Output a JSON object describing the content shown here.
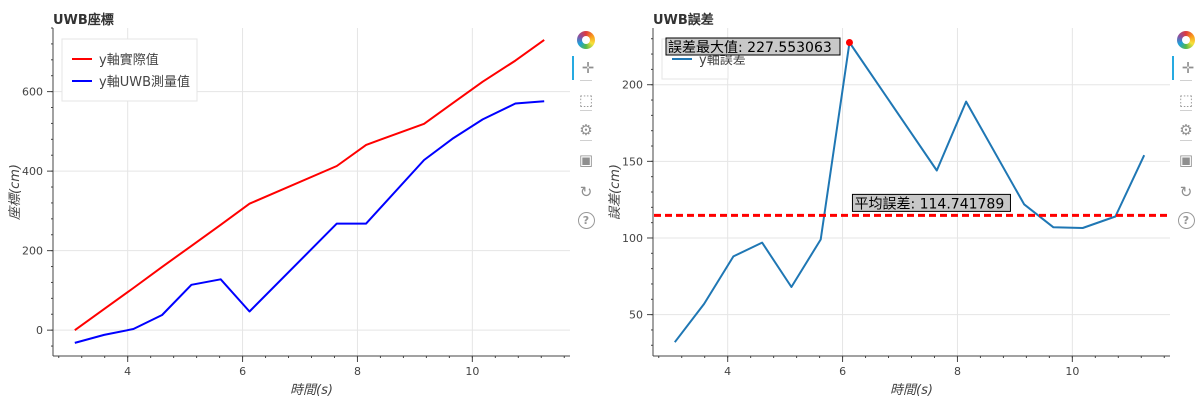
{
  "charts": [
    {
      "title": "UWB座標",
      "toolbar": [
        "bokeh-logo-icon",
        "pan-icon",
        "box-zoom-icon",
        "wheel-zoom-icon",
        "save-icon",
        "reset-icon",
        "help-icon"
      ],
      "chart_data": {
        "type": "line",
        "x": [
          3.08,
          3.59,
          4.1,
          4.6,
          5.11,
          5.62,
          6.12,
          7.64,
          8.15,
          9.16,
          9.67,
          10.18,
          10.75,
          11.25
        ],
        "series": [
          {
            "name": "y軸實際值",
            "color": "#ff0000",
            "values": [
              0,
              53,
              106,
              159,
              212,
              265,
              318,
              413,
              466,
              519,
              572,
              625,
              678,
              730
            ]
          },
          {
            "name": "y軸UWB測量值",
            "color": "#0000ff",
            "values": [
              -32,
              -12,
              3,
              38,
              114,
              128,
              47,
              268,
              268,
              428,
              483,
              530,
              570,
              576
            ]
          }
        ],
        "xlabel": "時間(s)",
        "ylabel": "座標(cm)",
        "xlim": [
          2.7,
          11.7
        ],
        "ylim": [
          -65,
          760
        ],
        "xticks": [
          4,
          6,
          8,
          10
        ],
        "yticks": [
          0,
          200,
          400,
          600
        ],
        "grid": true,
        "legend_position": "top-left"
      }
    },
    {
      "title": "UWB誤差",
      "toolbar": [
        "bokeh-logo-icon",
        "pan-icon",
        "box-zoom-icon",
        "wheel-zoom-icon",
        "save-icon",
        "reset-icon",
        "help-icon"
      ],
      "chart_data": {
        "type": "line",
        "x": [
          3.08,
          3.59,
          4.1,
          4.6,
          5.11,
          5.62,
          6.12,
          7.64,
          8.15,
          9.16,
          9.67,
          10.18,
          10.75,
          11.25
        ],
        "series": [
          {
            "name": "y軸誤差",
            "color": "#1f77b4",
            "values": [
              32,
              57,
              88,
              97,
              68,
              99,
              227.553063,
              144,
              189,
              122,
              107,
              106.5,
              114,
              154
            ]
          }
        ],
        "mean_line": {
          "value": 114.741789,
          "label": "平均誤差: 114.741789",
          "color": "#ff0000"
        },
        "max_point": {
          "x": 6.12,
          "y": 227.553063,
          "label": "誤差最大值: 227.553063",
          "color": "#ff0000"
        },
        "xlabel": "時間(s)",
        "ylabel": "誤差(cm)",
        "xlim": [
          2.7,
          11.7
        ],
        "ylim": [
          23,
          237
        ],
        "xticks": [
          4,
          6,
          8,
          10
        ],
        "yticks": [
          50,
          100,
          150,
          200
        ],
        "grid": true,
        "legend_position": "top-left"
      }
    }
  ]
}
